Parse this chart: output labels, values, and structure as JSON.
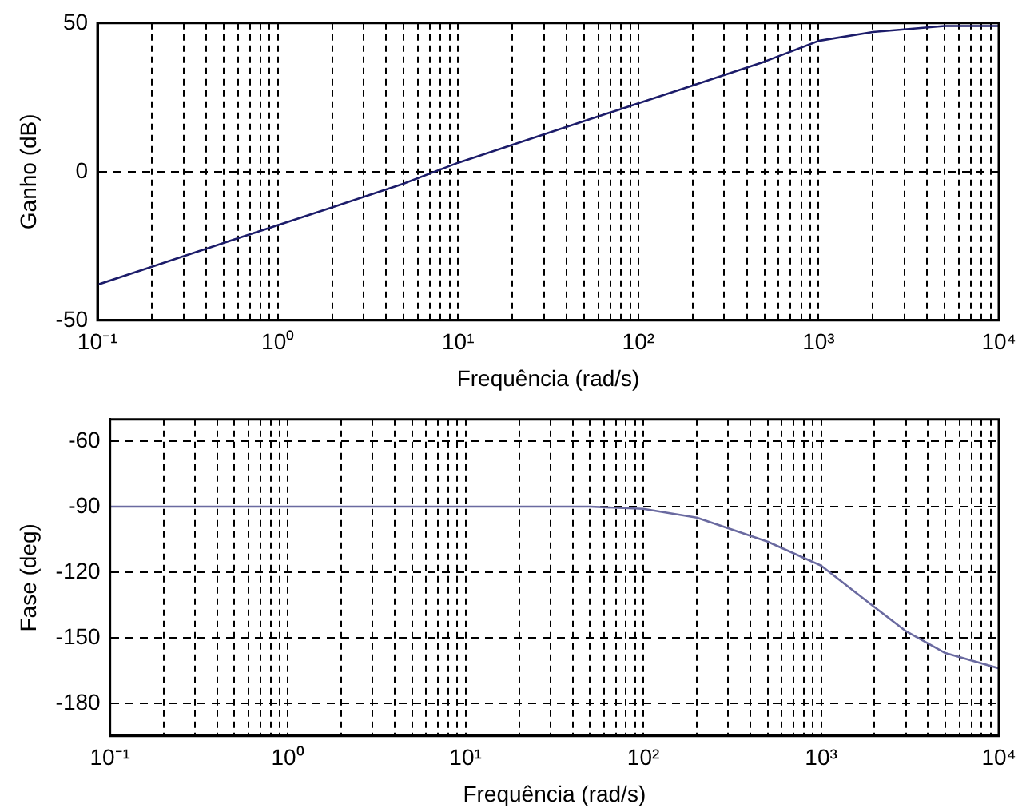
{
  "chart_data": [
    {
      "type": "line",
      "xlabel": "Frequência (rad/s)",
      "ylabel": "Ganho (dB)",
      "log": "x",
      "grid": true,
      "marker": "none",
      "line_style": "solid",
      "x": [
        0.1,
        0.2,
        0.5,
        1,
        2,
        5,
        10,
        20,
        50,
        100,
        200,
        500,
        1000,
        2000,
        5000,
        10000
      ],
      "series": [
        {
          "color": "#1c1c6a",
          "values": [
            -38,
            -32,
            -24,
            -18,
            -12,
            -4,
            3,
            9,
            17,
            23,
            29,
            37,
            44,
            47,
            49,
            49
          ]
        }
      ],
      "xlim": [
        0.1,
        10000
      ],
      "ylim": [
        -50,
        50
      ],
      "yticks": [
        -50,
        0,
        50
      ],
      "xticks": [
        {
          "value": 0.1,
          "label": "10⁻¹"
        },
        {
          "value": 0.2,
          "label": null
        },
        {
          "value": 0.3,
          "label": null
        },
        {
          "value": 0.4,
          "label": null
        },
        {
          "value": 0.5,
          "label": null
        },
        {
          "value": 0.6,
          "label": null
        },
        {
          "value": 0.7,
          "label": null
        },
        {
          "value": 0.8,
          "label": null
        },
        {
          "value": 0.9,
          "label": null
        },
        {
          "value": 1,
          "label": "10⁰"
        },
        {
          "value": 2,
          "label": null
        },
        {
          "value": 3,
          "label": null
        },
        {
          "value": 4,
          "label": null
        },
        {
          "value": 5,
          "label": null
        },
        {
          "value": 6,
          "label": null
        },
        {
          "value": 7,
          "label": null
        },
        {
          "value": 8,
          "label": null
        },
        {
          "value": 9,
          "label": null
        },
        {
          "value": 10,
          "label": "10¹"
        },
        {
          "value": 20,
          "label": null
        },
        {
          "value": 30,
          "label": null
        },
        {
          "value": 40,
          "label": null
        },
        {
          "value": 50,
          "label": null
        },
        {
          "value": 60,
          "label": null
        },
        {
          "value": 70,
          "label": null
        },
        {
          "value": 80,
          "label": null
        },
        {
          "value": 90,
          "label": null
        },
        {
          "value": 100,
          "label": "10²"
        },
        {
          "value": 200,
          "label": null
        },
        {
          "value": 300,
          "label": null
        },
        {
          "value": 400,
          "label": null
        },
        {
          "value": 500,
          "label": null
        },
        {
          "value": 600,
          "label": null
        },
        {
          "value": 700,
          "label": null
        },
        {
          "value": 800,
          "label": null
        },
        {
          "value": 900,
          "label": null
        },
        {
          "value": 1000,
          "label": "10³"
        },
        {
          "value": 2000,
          "label": null
        },
        {
          "value": 3000,
          "label": null
        },
        {
          "value": 4000,
          "label": null
        },
        {
          "value": 5000,
          "label": null
        },
        {
          "value": 6000,
          "label": null
        },
        {
          "value": 7000,
          "label": null
        },
        {
          "value": 8000,
          "label": null
        },
        {
          "value": 9000,
          "label": null
        },
        {
          "value": 10000,
          "label": "10⁴"
        }
      ]
    },
    {
      "type": "line",
      "xlabel": "Frequência (rad/s)",
      "ylabel": "Fase (deg)",
      "log": "x",
      "grid": true,
      "marker": "none",
      "line_style": "solid",
      "x": [
        0.1,
        1,
        10,
        50,
        100,
        200,
        500,
        1000,
        2000,
        3000,
        5000,
        10000
      ],
      "series": [
        {
          "color": "#6a6aa0",
          "values": [
            -90,
            -90,
            -90,
            -90,
            -91,
            -95,
            -106,
            -117,
            -136,
            -147,
            -157,
            -164
          ]
        }
      ],
      "xlim": [
        0.1,
        10000
      ],
      "ylim": [
        -195,
        -50
      ],
      "yticks": [
        -180,
        -150,
        -120,
        -90,
        -60
      ],
      "xticks": [
        {
          "value": 0.1,
          "label": "10⁻¹"
        },
        {
          "value": 0.2,
          "label": null
        },
        {
          "value": 0.3,
          "label": null
        },
        {
          "value": 0.4,
          "label": null
        },
        {
          "value": 0.5,
          "label": null
        },
        {
          "value": 0.6,
          "label": null
        },
        {
          "value": 0.7,
          "label": null
        },
        {
          "value": 0.8,
          "label": null
        },
        {
          "value": 0.9,
          "label": null
        },
        {
          "value": 1,
          "label": "10⁰"
        },
        {
          "value": 2,
          "label": null
        },
        {
          "value": 3,
          "label": null
        },
        {
          "value": 4,
          "label": null
        },
        {
          "value": 5,
          "label": null
        },
        {
          "value": 6,
          "label": null
        },
        {
          "value": 7,
          "label": null
        },
        {
          "value": 8,
          "label": null
        },
        {
          "value": 9,
          "label": null
        },
        {
          "value": 10,
          "label": "10¹"
        },
        {
          "value": 20,
          "label": null
        },
        {
          "value": 30,
          "label": null
        },
        {
          "value": 40,
          "label": null
        },
        {
          "value": 50,
          "label": null
        },
        {
          "value": 60,
          "label": null
        },
        {
          "value": 70,
          "label": null
        },
        {
          "value": 80,
          "label": null
        },
        {
          "value": 90,
          "label": null
        },
        {
          "value": 100,
          "label": "10²"
        },
        {
          "value": 200,
          "label": null
        },
        {
          "value": 300,
          "label": null
        },
        {
          "value": 400,
          "label": null
        },
        {
          "value": 500,
          "label": null
        },
        {
          "value": 600,
          "label": null
        },
        {
          "value": 700,
          "label": null
        },
        {
          "value": 800,
          "label": null
        },
        {
          "value": 900,
          "label": null
        },
        {
          "value": 1000,
          "label": "10³"
        },
        {
          "value": 2000,
          "label": null
        },
        {
          "value": 3000,
          "label": null
        },
        {
          "value": 4000,
          "label": null
        },
        {
          "value": 5000,
          "label": null
        },
        {
          "value": 6000,
          "label": null
        },
        {
          "value": 7000,
          "label": null
        },
        {
          "value": 8000,
          "label": null
        },
        {
          "value": 9000,
          "label": null
        },
        {
          "value": 10000,
          "label": "10⁴"
        }
      ]
    }
  ]
}
